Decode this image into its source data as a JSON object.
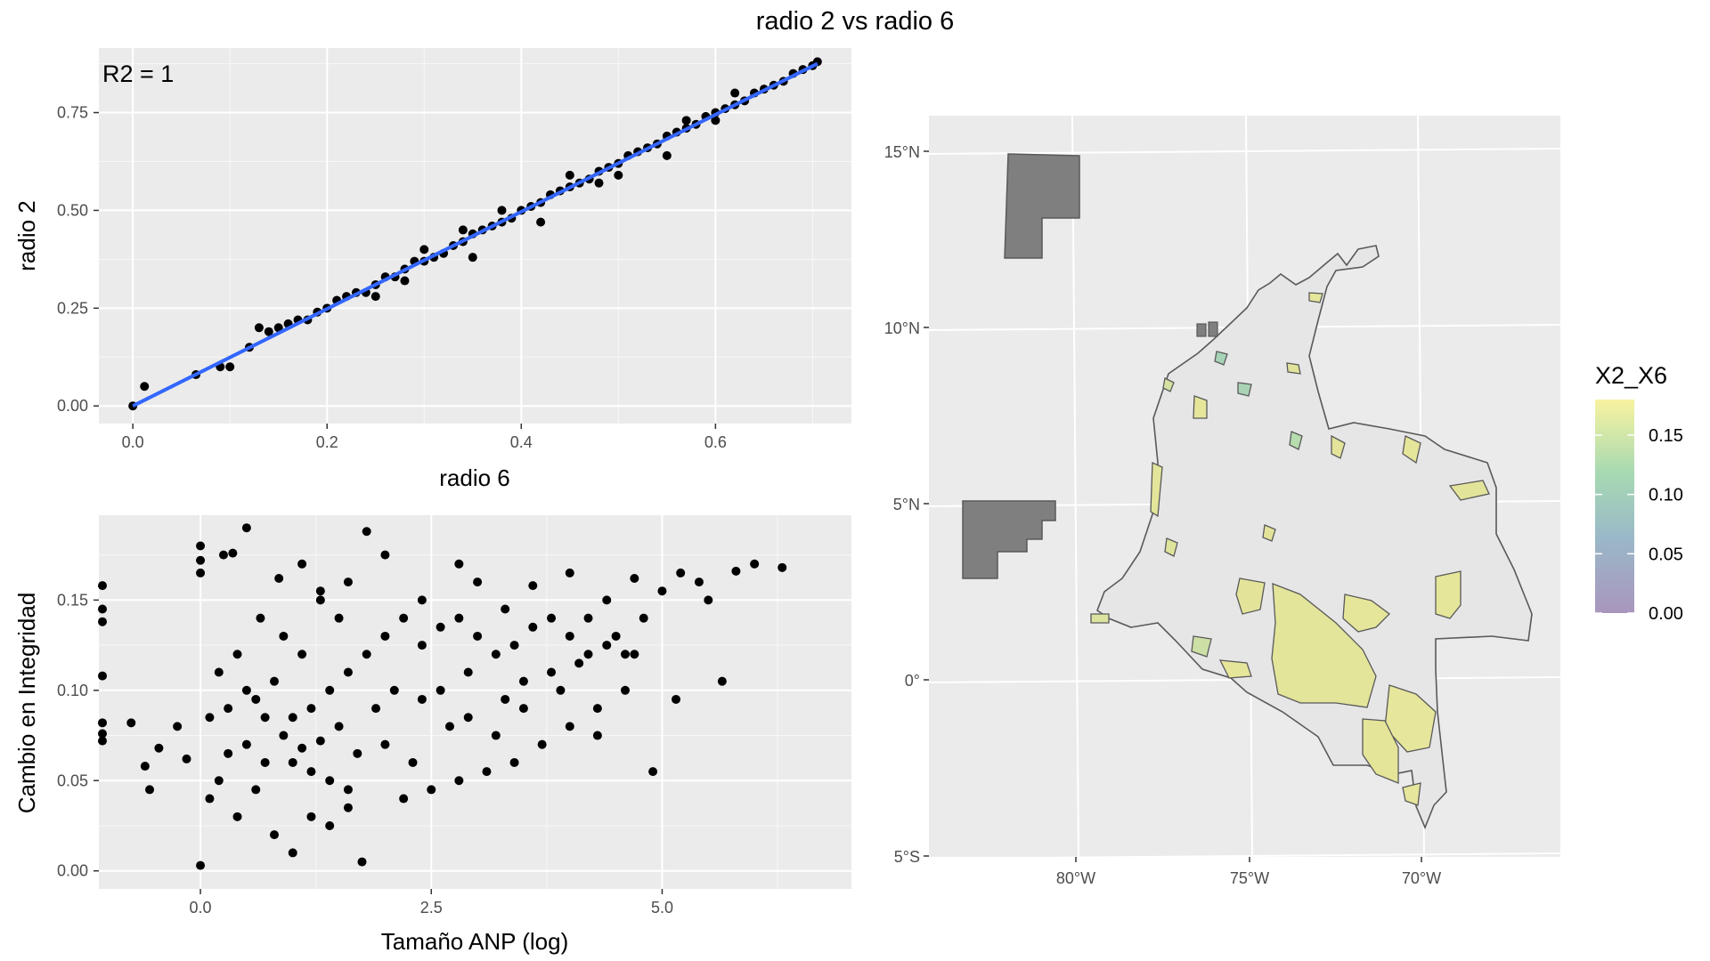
{
  "title": "radio 2 vs radio 6",
  "chart_data": [
    {
      "type": "scatter",
      "panel": "radio-scatter",
      "xlabel": "radio 6",
      "ylabel": "radio 2",
      "annotation": "R2 = 1",
      "xlim": [
        -0.035,
        0.74
      ],
      "ylim": [
        -0.045,
        0.915
      ],
      "xticks": [
        0.0,
        0.2,
        0.4,
        0.6
      ],
      "xtick_labels": [
        "0.0",
        "0.2",
        "0.4",
        "0.6"
      ],
      "yticks": [
        0.0,
        0.25,
        0.5,
        0.75
      ],
      "ytick_labels": [
        "0.00",
        "0.25",
        "0.50",
        "0.75"
      ],
      "grid": true,
      "fit_line": {
        "x": [
          0.0,
          0.705
        ],
        "y": [
          0.0,
          0.875
        ],
        "color": "#3366ff"
      },
      "point_color": "#000000",
      "points": [
        [
          0.0,
          0.0
        ],
        [
          0.012,
          0.05
        ],
        [
          0.065,
          0.08
        ],
        [
          0.09,
          0.1
        ],
        [
          0.1,
          0.1
        ],
        [
          0.12,
          0.15
        ],
        [
          0.13,
          0.2
        ],
        [
          0.14,
          0.19
        ],
        [
          0.15,
          0.2
        ],
        [
          0.16,
          0.21
        ],
        [
          0.17,
          0.22
        ],
        [
          0.18,
          0.22
        ],
        [
          0.19,
          0.24
        ],
        [
          0.2,
          0.25
        ],
        [
          0.21,
          0.27
        ],
        [
          0.22,
          0.28
        ],
        [
          0.23,
          0.29
        ],
        [
          0.24,
          0.29
        ],
        [
          0.25,
          0.31
        ],
        [
          0.26,
          0.33
        ],
        [
          0.27,
          0.33
        ],
        [
          0.28,
          0.35
        ],
        [
          0.29,
          0.37
        ],
        [
          0.3,
          0.37
        ],
        [
          0.31,
          0.38
        ],
        [
          0.32,
          0.39
        ],
        [
          0.33,
          0.41
        ],
        [
          0.34,
          0.42
        ],
        [
          0.35,
          0.44
        ],
        [
          0.36,
          0.45
        ],
        [
          0.37,
          0.46
        ],
        [
          0.38,
          0.47
        ],
        [
          0.39,
          0.48
        ],
        [
          0.4,
          0.5
        ],
        [
          0.41,
          0.51
        ],
        [
          0.42,
          0.52
        ],
        [
          0.43,
          0.54
        ],
        [
          0.44,
          0.55
        ],
        [
          0.45,
          0.56
        ],
        [
          0.46,
          0.57
        ],
        [
          0.47,
          0.58
        ],
        [
          0.48,
          0.6
        ],
        [
          0.49,
          0.61
        ],
        [
          0.5,
          0.62
        ],
        [
          0.51,
          0.64
        ],
        [
          0.52,
          0.65
        ],
        [
          0.53,
          0.66
        ],
        [
          0.54,
          0.67
        ],
        [
          0.55,
          0.69
        ],
        [
          0.56,
          0.7
        ],
        [
          0.57,
          0.71
        ],
        [
          0.58,
          0.72
        ],
        [
          0.59,
          0.74
        ],
        [
          0.6,
          0.75
        ],
        [
          0.61,
          0.76
        ],
        [
          0.62,
          0.77
        ],
        [
          0.63,
          0.78
        ],
        [
          0.64,
          0.8
        ],
        [
          0.65,
          0.81
        ],
        [
          0.66,
          0.82
        ],
        [
          0.67,
          0.83
        ],
        [
          0.68,
          0.85
        ],
        [
          0.69,
          0.86
        ],
        [
          0.7,
          0.87
        ],
        [
          0.705,
          0.88
        ],
        [
          0.35,
          0.38
        ],
        [
          0.34,
          0.45
        ],
        [
          0.38,
          0.5
        ],
        [
          0.55,
          0.64
        ],
        [
          0.57,
          0.73
        ],
        [
          0.42,
          0.47
        ],
        [
          0.25,
          0.28
        ],
        [
          0.28,
          0.32
        ],
        [
          0.3,
          0.4
        ],
        [
          0.45,
          0.59
        ],
        [
          0.5,
          0.59
        ],
        [
          0.6,
          0.73
        ],
        [
          0.62,
          0.8
        ],
        [
          0.48,
          0.57
        ]
      ]
    },
    {
      "type": "scatter",
      "panel": "integrity-scatter",
      "xlabel": "Tamaño ANP (log)",
      "ylabel": "Cambio en Integridad",
      "xlim": [
        -1.1,
        7.05
      ],
      "ylim": [
        -0.01,
        0.197
      ],
      "xticks": [
        0.0,
        2.5,
        5.0
      ],
      "xtick_labels": [
        "0.0",
        "2.5",
        "5.0"
      ],
      "yticks": [
        0.0,
        0.05,
        0.1,
        0.15
      ],
      "ytick_labels": [
        "0.00",
        "0.05",
        "0.10",
        "0.15"
      ],
      "grid": true,
      "point_color": "#000000",
      "points": [
        [
          -1.1,
          0.158
        ],
        [
          -1.1,
          0.145
        ],
        [
          -1.1,
          0.138
        ],
        [
          -1.1,
          0.108
        ],
        [
          -1.1,
          0.082
        ],
        [
          -1.1,
          0.076
        ],
        [
          -1.1,
          0.072
        ],
        [
          -0.75,
          0.082
        ],
        [
          -0.6,
          0.058
        ],
        [
          -0.55,
          0.045
        ],
        [
          -0.45,
          0.068
        ],
        [
          -0.25,
          0.08
        ],
        [
          -0.15,
          0.062
        ],
        [
          0.0,
          0.18
        ],
        [
          0.0,
          0.172
        ],
        [
          0.0,
          0.165
        ],
        [
          0.0,
          0.003
        ],
        [
          0.25,
          0.175
        ],
        [
          0.35,
          0.176
        ],
        [
          0.5,
          0.19
        ],
        [
          0.65,
          0.14
        ],
        [
          0.85,
          0.162
        ],
        [
          1.1,
          0.17
        ],
        [
          1.3,
          0.155
        ],
        [
          1.6,
          0.16
        ],
        [
          1.8,
          0.188
        ],
        [
          2.0,
          0.175
        ],
        [
          2.4,
          0.15
        ],
        [
          2.8,
          0.17
        ],
        [
          3.0,
          0.16
        ],
        [
          3.3,
          0.145
        ],
        [
          3.6,
          0.158
        ],
        [
          4.0,
          0.165
        ],
        [
          4.4,
          0.15
        ],
        [
          4.7,
          0.162
        ],
        [
          5.0,
          0.155
        ],
        [
          5.4,
          0.16
        ],
        [
          5.8,
          0.166
        ],
        [
          6.0,
          0.17
        ],
        [
          6.3,
          0.168
        ],
        [
          5.15,
          0.095
        ],
        [
          5.65,
          0.105
        ],
        [
          4.9,
          0.055
        ],
        [
          4.5,
          0.13
        ],
        [
          4.2,
          0.12
        ],
        [
          3.8,
          0.11
        ],
        [
          3.5,
          0.09
        ],
        [
          3.2,
          0.075
        ],
        [
          2.9,
          0.085
        ],
        [
          2.6,
          0.1
        ],
        [
          2.3,
          0.06
        ],
        [
          2.0,
          0.07
        ],
        [
          1.7,
          0.065
        ],
        [
          1.5,
          0.08
        ],
        [
          1.3,
          0.072
        ],
        [
          1.1,
          0.068
        ],
        [
          0.9,
          0.075
        ],
        [
          0.7,
          0.06
        ],
        [
          0.5,
          0.07
        ],
        [
          0.3,
          0.065
        ],
        [
          0.2,
          0.05
        ],
        [
          0.1,
          0.04
        ],
        [
          0.4,
          0.03
        ],
        [
          0.6,
          0.045
        ],
        [
          0.8,
          0.02
        ],
        [
          1.0,
          0.01
        ],
        [
          1.2,
          0.03
        ],
        [
          1.4,
          0.025
        ],
        [
          1.6,
          0.035
        ],
        [
          1.75,
          0.005
        ],
        [
          2.2,
          0.04
        ],
        [
          2.5,
          0.045
        ],
        [
          2.8,
          0.05
        ],
        [
          3.1,
          0.055
        ],
        [
          3.4,
          0.06
        ],
        [
          3.7,
          0.07
        ],
        [
          4.0,
          0.08
        ],
        [
          4.3,
          0.09
        ],
        [
          4.6,
          0.1
        ],
        [
          0.2,
          0.11
        ],
        [
          0.4,
          0.12
        ],
        [
          0.6,
          0.095
        ],
        [
          0.8,
          0.105
        ],
        [
          1.0,
          0.085
        ],
        [
          1.2,
          0.09
        ],
        [
          1.4,
          0.1
        ],
        [
          1.6,
          0.11
        ],
        [
          1.8,
          0.12
        ],
        [
          2.0,
          0.13
        ],
        [
          2.2,
          0.14
        ],
        [
          2.4,
          0.125
        ],
        [
          2.6,
          0.135
        ],
        [
          2.8,
          0.14
        ],
        [
          3.0,
          0.13
        ],
        [
          3.2,
          0.12
        ],
        [
          3.4,
          0.125
        ],
        [
          3.6,
          0.135
        ],
        [
          3.8,
          0.14
        ],
        [
          4.0,
          0.13
        ],
        [
          4.2,
          0.14
        ],
        [
          4.4,
          0.125
        ],
        [
          4.6,
          0.12
        ],
        [
          4.8,
          0.14
        ],
        [
          5.2,
          0.165
        ],
        [
          5.5,
          0.15
        ],
        [
          1.3,
          0.15
        ],
        [
          1.5,
          0.14
        ],
        [
          1.9,
          0.09
        ],
        [
          2.1,
          0.1
        ],
        [
          2.7,
          0.08
        ],
        [
          3.3,
          0.095
        ],
        [
          3.9,
          0.1
        ],
        [
          4.1,
          0.115
        ],
        [
          0.9,
          0.13
        ],
        [
          1.1,
          0.12
        ],
        [
          0.5,
          0.1
        ],
        [
          0.7,
          0.085
        ],
        [
          1.0,
          0.06
        ],
        [
          1.2,
          0.055
        ],
        [
          1.4,
          0.05
        ],
        [
          1.6,
          0.045
        ],
        [
          0.1,
          0.085
        ],
        [
          0.3,
          0.09
        ],
        [
          2.4,
          0.095
        ],
        [
          2.9,
          0.11
        ],
        [
          3.5,
          0.105
        ],
        [
          4.3,
          0.075
        ],
        [
          4.7,
          0.12
        ]
      ]
    },
    {
      "type": "map",
      "panel": "colombia-map",
      "legend_title": "X2_X6",
      "legend_ticks": [
        0.15,
        0.1,
        0.05,
        0.0
      ],
      "legend_tick_labels": [
        "0.15",
        "0.10",
        "0.05",
        "0.00"
      ],
      "legend_range": [
        0.0,
        0.18
      ],
      "colors": {
        "low": "#a996be",
        "mid": "#9fcfb4",
        "high": "#f8f3a0",
        "land": "#e6e6e6",
        "na_fill": "#7f7f7f",
        "outline": "#595959"
      },
      "lon_ticks": [
        -80,
        -75,
        -70
      ],
      "lon_tick_labels": [
        "80°W",
        "75°W",
        "70°W"
      ],
      "lat_ticks": [
        15,
        10,
        5,
        0,
        -5
      ],
      "lat_tick_labels": [
        "15°N",
        "10°N",
        "5°N",
        "0°",
        "5°S"
      ],
      "lon_range": [
        -84.0,
        -66.0
      ],
      "lat_range": [
        -5.0,
        16.0
      ],
      "grid": true,
      "legend_placement": "right"
    }
  ]
}
